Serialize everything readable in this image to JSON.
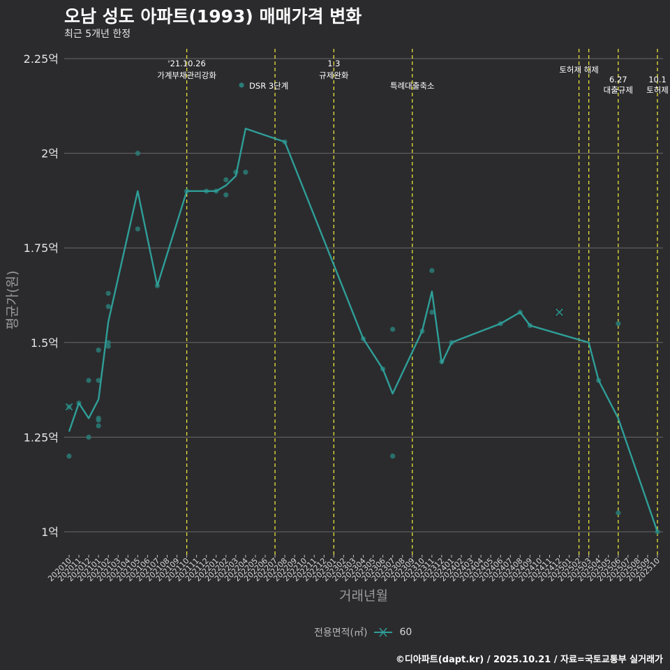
{
  "title": "오남 성도 아파트(1993) 매매가격 변화",
  "subtitle": "최근 5개년 한정",
  "credit": "©디아파트(dapt.kr) / 2025.10.21 / 자료=국토교통부 실거래가",
  "colors": {
    "background": "#2b2b2d",
    "line": "#2f9e98",
    "point": "#2a7d78",
    "vline": "#e8e23a",
    "grid": "#6a6a6a"
  },
  "chart_data": {
    "type": "line",
    "title": "오남 성도 아파트(1993) 매매가격 변화",
    "xlabel": "거래년월",
    "ylabel": "평균가(원)",
    "ylim": [
      0.95,
      2.25
    ],
    "yticks": [
      {
        "value": 1.0,
        "label": "1억"
      },
      {
        "value": 1.25,
        "label": "1.25억"
      },
      {
        "value": 1.5,
        "label": "1.5억"
      },
      {
        "value": 1.75,
        "label": "1.75억"
      },
      {
        "value": 2.0,
        "label": "2억"
      },
      {
        "value": 2.25,
        "label": "2.25억"
      }
    ],
    "months": [
      "202010",
      "202011",
      "202012",
      "202101",
      "202102",
      "202103",
      "202104",
      "202105",
      "202106",
      "202107",
      "202108",
      "202109",
      "202110",
      "202111",
      "202112",
      "202201",
      "202202",
      "202203",
      "202204",
      "202205",
      "202206",
      "202207",
      "202208",
      "202209",
      "202210",
      "202211",
      "202212",
      "202301",
      "202302",
      "202303",
      "202304",
      "202305",
      "202306",
      "202307",
      "202308",
      "202309",
      "202310",
      "202311",
      "202312",
      "202401",
      "202402",
      "202403",
      "202404",
      "202405",
      "202406",
      "202407",
      "202408",
      "202409",
      "202410",
      "202411",
      "202412",
      "202501",
      "202502",
      "202503",
      "202504",
      "202505",
      "202506",
      "202507",
      "202508",
      "202509",
      "202510"
    ],
    "legend": {
      "title": "전용면적(㎡)",
      "entries": [
        "60"
      ]
    },
    "series": [
      {
        "name": "60",
        "line": [
          [
            0,
            1.265
          ],
          [
            1,
            1.34
          ],
          [
            2,
            1.3
          ],
          [
            3,
            1.35
          ],
          [
            4,
            1.555
          ],
          [
            7,
            1.9
          ],
          [
            9,
            1.65
          ],
          [
            12,
            1.9
          ],
          [
            14,
            1.9
          ],
          [
            15,
            1.9
          ],
          [
            16,
            1.915
          ],
          [
            17,
            1.94
          ],
          [
            18,
            2.065
          ],
          [
            22,
            2.03
          ],
          [
            30,
            1.51
          ],
          [
            32,
            1.43
          ],
          [
            33,
            1.365
          ],
          [
            36,
            1.53
          ],
          [
            37,
            1.635
          ],
          [
            38,
            1.445
          ],
          [
            39,
            1.5
          ],
          [
            44,
            1.55
          ],
          [
            46,
            1.58
          ],
          [
            47,
            1.545
          ],
          [
            53,
            1.5
          ],
          [
            54,
            1.4
          ],
          [
            56,
            1.3
          ],
          [
            60,
            1.0
          ]
        ],
        "points": [
          [
            0,
            1.2
          ],
          [
            0,
            1.33
          ],
          [
            1,
            1.34
          ],
          [
            2,
            1.4
          ],
          [
            2,
            1.25
          ],
          [
            3,
            1.48
          ],
          [
            3,
            1.4
          ],
          [
            3,
            1.3
          ],
          [
            3,
            1.295
          ],
          [
            3,
            1.28
          ],
          [
            4,
            1.63
          ],
          [
            4,
            1.595
          ],
          [
            4,
            1.5
          ],
          [
            4,
            1.49
          ],
          [
            7,
            2.0
          ],
          [
            7,
            1.8
          ],
          [
            9,
            1.65
          ],
          [
            12,
            1.9
          ],
          [
            14,
            1.9
          ],
          [
            15,
            1.9
          ],
          [
            16,
            1.93
          ],
          [
            16,
            1.89
          ],
          [
            17,
            1.95
          ],
          [
            18,
            1.95
          ],
          [
            22,
            2.03
          ],
          [
            30,
            1.51
          ],
          [
            32,
            1.43
          ],
          [
            33,
            1.535
          ],
          [
            33,
            1.2
          ],
          [
            36,
            1.53
          ],
          [
            37,
            1.69
          ],
          [
            37,
            1.58
          ],
          [
            38,
            1.45
          ],
          [
            39,
            1.5
          ],
          [
            44,
            1.55
          ],
          [
            46,
            1.58
          ],
          [
            47,
            1.545
          ],
          [
            54,
            1.4
          ],
          [
            56,
            1.55
          ],
          [
            56,
            1.05
          ],
          [
            60,
            1.0
          ]
        ],
        "x_markers": [
          [
            0,
            1.33
          ],
          [
            50,
            1.58
          ]
        ]
      }
    ],
    "annotations": [
      {
        "month_index": 12,
        "lines": [
          "'21.10.26",
          "가계부채관리강화"
        ]
      },
      {
        "month_index": 21,
        "lines": [
          "DSR 3단계"
        ],
        "key_point": true
      },
      {
        "month_index": 27,
        "lines": [
          "1.3",
          "규제완화"
        ]
      },
      {
        "month_index": 35,
        "lines": [
          "특례대출축소"
        ]
      },
      {
        "month_index": 52,
        "lines": [
          "토허제 해제"
        ]
      },
      {
        "month_index": 53,
        "lines": []
      },
      {
        "month_index": 56,
        "lines": [
          "6.27",
          "대출규제"
        ]
      },
      {
        "month_index": 60,
        "lines": [
          "10.1",
          "토허제"
        ]
      }
    ]
  }
}
